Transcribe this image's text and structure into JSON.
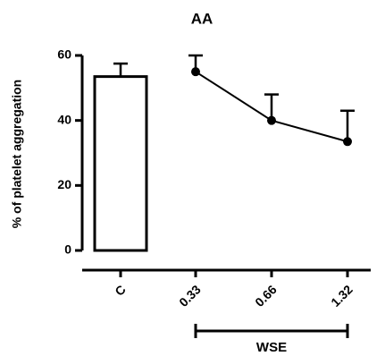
{
  "chart_data": {
    "type": "combo",
    "title": "AA",
    "ylabel": "% of platelet aggregation",
    "categories": [
      "C",
      "0.33",
      "0.66",
      "1.32"
    ],
    "series": [
      {
        "type": "bar",
        "color": "#000000",
        "values": [
          53.5,
          null,
          null,
          null
        ],
        "errors": [
          4,
          null,
          null,
          null
        ]
      },
      {
        "type": "line",
        "color": "#000000",
        "values": [
          null,
          55,
          40,
          33.5
        ],
        "errors": [
          null,
          5,
          8,
          9.5
        ]
      }
    ],
    "ylim": [
      0,
      60
    ],
    "yticks": [
      0,
      20,
      40,
      60
    ],
    "group": {
      "label": "WSE",
      "from": 1,
      "to": 3
    }
  }
}
